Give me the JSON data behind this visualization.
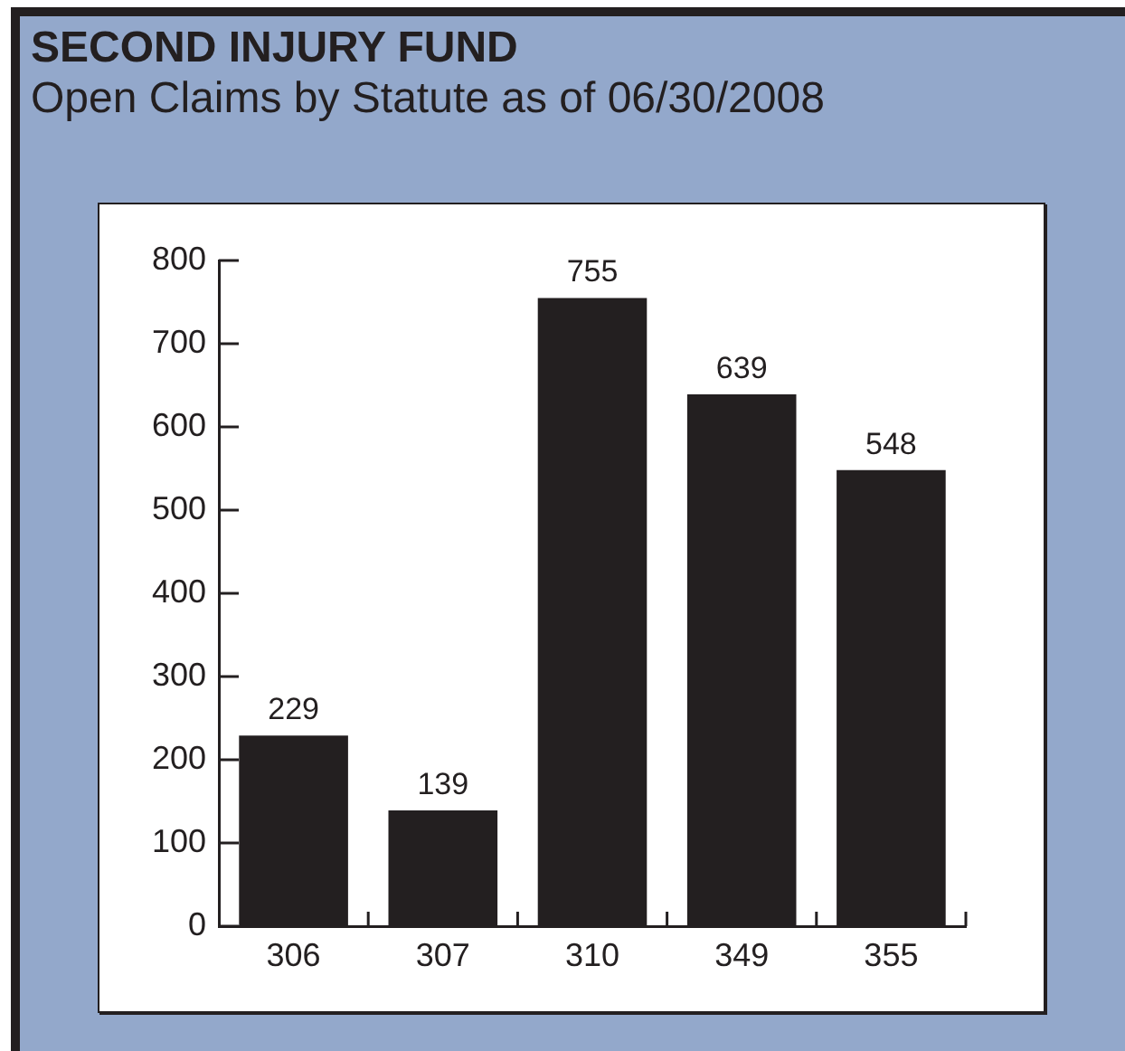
{
  "chart_data": {
    "type": "bar",
    "title": "SECOND INJURY FUND",
    "subtitle": "Open Claims by Statute as of 06/30/2008",
    "categories": [
      "306",
      "307",
      "310",
      "349",
      "355"
    ],
    "values": [
      229,
      139,
      755,
      639,
      548
    ],
    "color": "#231f20",
    "ylim": [
      0,
      800
    ],
    "yticks": [
      0,
      100,
      200,
      300,
      400,
      500,
      600,
      700,
      800
    ],
    "data_labels": true
  }
}
